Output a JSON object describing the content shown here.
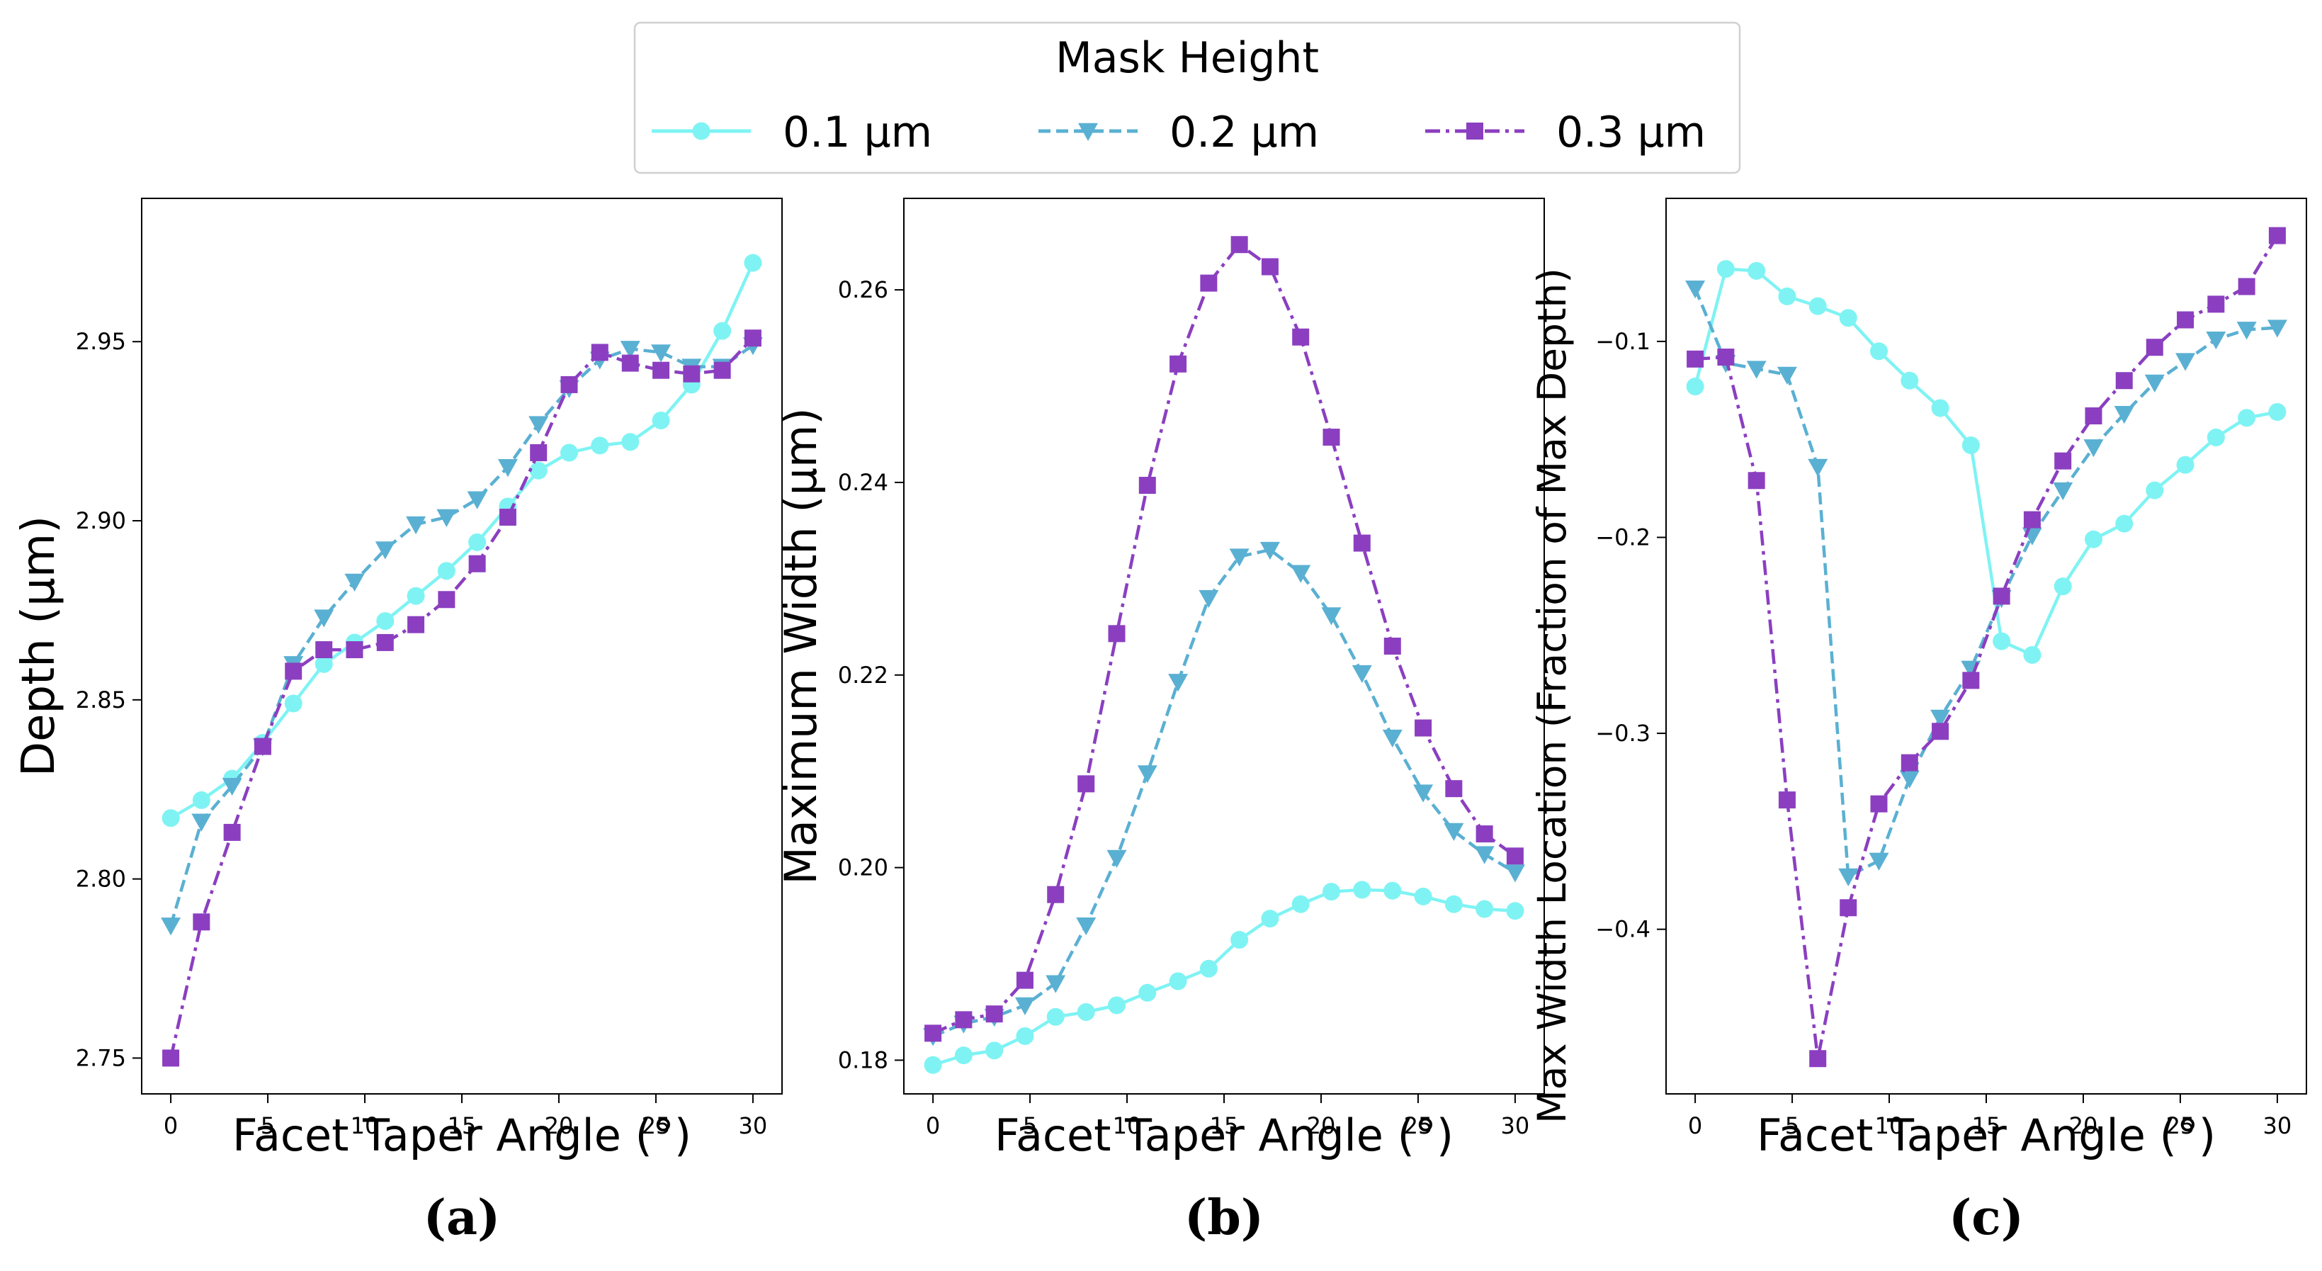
{
  "legend": {
    "title": "Mask Height",
    "entries": [
      "0.1 μm",
      "0.2 μm",
      "0.3 μm"
    ]
  },
  "colors": {
    "series_0_1": "#7ff3f3",
    "series_0_2": "#5ab0d2",
    "series_0_3": "#8b3fc0",
    "axis": "#000000",
    "legend_border": "#d0d0d0"
  },
  "chart_data": [
    {
      "type": "line",
      "panel": "(a)",
      "xlabel": "Facet Taper Angle (°)",
      "ylabel": "Depth (μm)",
      "xlim": [
        -1.5,
        31.5
      ],
      "ylim": [
        2.74,
        2.99
      ],
      "xticks": [
        0,
        5,
        10,
        15,
        20,
        25,
        30
      ],
      "yticks": [
        2.75,
        2.8,
        2.85,
        2.9,
        2.95
      ],
      "ytick_labels": [
        "2.75",
        "2.80",
        "2.85",
        "2.90",
        "2.95"
      ],
      "x": [
        0,
        1.58,
        3.16,
        4.74,
        6.32,
        7.89,
        9.47,
        11.05,
        12.63,
        14.21,
        15.79,
        17.37,
        18.95,
        20.53,
        22.11,
        23.68,
        25.26,
        26.84,
        28.42,
        30
      ],
      "series": [
        {
          "name": "0.1 μm",
          "values": [
            2.817,
            2.822,
            2.828,
            2.838,
            2.849,
            2.86,
            2.866,
            2.872,
            2.879,
            2.886,
            2.894,
            2.904,
            2.914,
            2.919,
            2.921,
            2.922,
            2.928,
            2.938,
            2.953,
            2.972
          ]
        },
        {
          "name": "0.2 μm",
          "values": [
            2.787,
            2.816,
            2.826,
            2.837,
            2.86,
            2.873,
            2.883,
            2.892,
            2.899,
            2.901,
            2.906,
            2.915,
            2.927,
            2.937,
            2.945,
            2.948,
            2.947,
            2.943,
            2.943,
            2.949
          ]
        },
        {
          "name": "0.3 μm",
          "values": [
            2.75,
            2.788,
            2.813,
            2.837,
            2.858,
            2.864,
            2.864,
            2.866,
            2.871,
            2.878,
            2.888,
            2.901,
            2.919,
            2.938,
            2.947,
            2.944,
            2.942,
            2.941,
            2.942,
            2.951
          ]
        }
      ]
    },
    {
      "type": "line",
      "panel": "(b)",
      "xlabel": "Facet Taper Angle (°)",
      "ylabel": "Maximum Width (μm)",
      "xlim": [
        -1.5,
        31.5
      ],
      "ylim": [
        0.1765,
        0.2695
      ],
      "xticks": [
        0,
        5,
        10,
        15,
        20,
        25,
        30
      ],
      "yticks": [
        0.18,
        0.2,
        0.22,
        0.24,
        0.26
      ],
      "ytick_labels": [
        "0.18",
        "0.20",
        "0.22",
        "0.24",
        "0.26"
      ],
      "x": [
        0,
        1.58,
        3.16,
        4.74,
        6.32,
        7.89,
        9.47,
        11.05,
        12.63,
        14.21,
        15.79,
        17.37,
        18.95,
        20.53,
        22.11,
        23.68,
        25.26,
        26.84,
        28.42,
        30
      ],
      "series": [
        {
          "name": "0.1 μm",
          "values": [
            0.1795,
            0.1805,
            0.181,
            0.1825,
            0.1845,
            0.185,
            0.1857,
            0.187,
            0.1882,
            0.1895,
            0.1925,
            0.1947,
            0.1962,
            0.1975,
            0.1977,
            0.1976,
            0.197,
            0.1962,
            0.1957,
            0.1955
          ]
        },
        {
          "name": "0.2 μm",
          "values": [
            0.1825,
            0.1838,
            0.1845,
            0.1857,
            0.188,
            0.194,
            0.201,
            0.2098,
            0.2193,
            0.228,
            0.2323,
            0.233,
            0.2306,
            0.2262,
            0.2202,
            0.2135,
            0.2078,
            0.2038,
            0.2014,
            0.1995
          ]
        },
        {
          "name": "0.3 μm",
          "values": [
            0.1828,
            0.1842,
            0.1848,
            0.1883,
            0.1972,
            0.2087,
            0.2243,
            0.2397,
            0.2523,
            0.2607,
            0.2647,
            0.2624,
            0.2551,
            0.2447,
            0.2337,
            0.223,
            0.2145,
            0.2082,
            0.2035,
            0.2012
          ]
        }
      ]
    },
    {
      "type": "line",
      "panel": "(c)",
      "xlabel": "Facet Taper Angle (°)",
      "ylabel": "Max Width Location (Fraction of Max Depth)",
      "xlim": [
        -1.5,
        31.5
      ],
      "ylim": [
        -0.484,
        -0.027
      ],
      "xticks": [
        0,
        5,
        10,
        15,
        20,
        25,
        30
      ],
      "yticks": [
        -0.4,
        -0.3,
        -0.2,
        -0.1
      ],
      "ytick_labels": [
        "−0.4",
        "−0.3",
        "−0.2",
        "−0.1"
      ],
      "x": [
        0,
        1.58,
        3.16,
        4.74,
        6.32,
        7.89,
        9.47,
        11.05,
        12.63,
        14.21,
        15.79,
        17.37,
        18.95,
        20.53,
        22.11,
        23.68,
        25.26,
        26.84,
        28.42,
        30
      ],
      "series": [
        {
          "name": "0.1 μm",
          "values": [
            -0.123,
            -0.063,
            -0.064,
            -0.077,
            -0.082,
            -0.088,
            -0.105,
            -0.12,
            -0.134,
            -0.153,
            -0.253,
            -0.26,
            -0.225,
            -0.201,
            -0.193,
            -0.176,
            -0.163,
            -0.149,
            -0.139,
            -0.136
          ]
        },
        {
          "name": "0.2 μm",
          "values": [
            -0.073,
            -0.111,
            -0.114,
            -0.117,
            -0.164,
            -0.373,
            -0.365,
            -0.323,
            -0.292,
            -0.267,
            -0.231,
            -0.199,
            -0.176,
            -0.154,
            -0.137,
            -0.121,
            -0.11,
            -0.099,
            -0.094,
            -0.093
          ]
        },
        {
          "name": "0.3 μm",
          "values": [
            -0.109,
            -0.108,
            -0.171,
            -0.334,
            -0.466,
            -0.389,
            -0.336,
            -0.315,
            -0.299,
            -0.273,
            -0.23,
            -0.191,
            -0.161,
            -0.138,
            -0.12,
            -0.103,
            -0.089,
            -0.081,
            -0.072,
            -0.046
          ]
        }
      ]
    }
  ]
}
